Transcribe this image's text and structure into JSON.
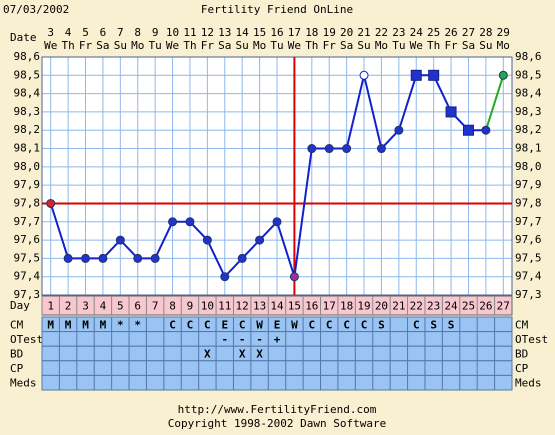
{
  "chart_data": {
    "type": "line",
    "date": "07/03/2002",
    "title": "Fertility Friend OnLine",
    "date_label": "Date",
    "day_label": "Day",
    "categories": [
      "3",
      "4",
      "5",
      "6",
      "7",
      "8",
      "9",
      "10",
      "11",
      "12",
      "13",
      "14",
      "15",
      "16",
      "17",
      "18",
      "19",
      "20",
      "21",
      "22",
      "23",
      "24",
      "25",
      "26",
      "27",
      "28",
      "29"
    ],
    "weekdays": [
      "We",
      "Th",
      "Fr",
      "Sa",
      "Su",
      "Mo",
      "Tu",
      "We",
      "Th",
      "Fr",
      "Sa",
      "Su",
      "Mo",
      "Tu",
      "We",
      "Th",
      "Fr",
      "Sa",
      "Su",
      "Mo",
      "Tu",
      "We",
      "Th",
      "Fr",
      "Sa",
      "Su",
      "Mo"
    ],
    "cycle_days": [
      "1",
      "2",
      "3",
      "4",
      "5",
      "6",
      "7",
      "8",
      "9",
      "10",
      "11",
      "12",
      "13",
      "14",
      "15",
      "16",
      "17",
      "18",
      "19",
      "20",
      "21",
      "22",
      "23",
      "24",
      "25",
      "26",
      "27"
    ],
    "values": [
      97.8,
      97.5,
      97.5,
      97.5,
      97.6,
      97.5,
      97.5,
      97.7,
      97.7,
      97.6,
      97.4,
      97.5,
      97.6,
      97.7,
      97.4,
      98.1,
      98.1,
      98.1,
      98.5,
      98.1,
      98.2,
      98.5,
      98.5,
      98.3,
      98.2,
      98.2,
      98.5
    ],
    "markers": [
      "circle",
      "circle",
      "circle",
      "circle",
      "circle",
      "circle",
      "circle",
      "circle",
      "circle",
      "circle",
      "circle",
      "circle",
      "circle",
      "circle",
      "circle",
      "circle",
      "circle",
      "circle",
      "open",
      "circle",
      "circle",
      "square",
      "square",
      "square",
      "square",
      "circle",
      "circle"
    ],
    "point_colors": [
      "#dd2222",
      "#2233cc",
      "#2233cc",
      "#2233cc",
      "#2233cc",
      "#2233cc",
      "#2233cc",
      "#2233cc",
      "#2233cc",
      "#2233cc",
      "#2233cc",
      "#2233cc",
      "#2233cc",
      "#2233cc",
      "#993399",
      "#2233cc",
      "#2233cc",
      "#2233cc",
      "#ffffff",
      "#2233cc",
      "#2233cc",
      "#2233cc",
      "#2233cc",
      "#2233cc",
      "#2233cc",
      "#2233cc",
      "#22aa44"
    ],
    "line_color": "#1122cc",
    "projection_color": "#22aa22",
    "coverline": 97.8,
    "coverline_color": "#dd0000",
    "ovulation_index": 14,
    "ylim": [
      97.3,
      98.6
    ],
    "yticks": [
      {
        "value": 98.6,
        "label": "98,6"
      },
      {
        "value": 98.5,
        "label": "98,5"
      },
      {
        "value": 98.4,
        "label": "98,4"
      },
      {
        "value": 98.3,
        "label": "98,3"
      },
      {
        "value": 98.2,
        "label": "98,2"
      },
      {
        "value": 98.1,
        "label": "98,1"
      },
      {
        "value": 98.0,
        "label": "98,0"
      },
      {
        "value": 97.9,
        "label": "97,9"
      },
      {
        "value": 97.8,
        "label": "97,8"
      },
      {
        "value": 97.7,
        "label": "97,7"
      },
      {
        "value": 97.6,
        "label": "97,6"
      },
      {
        "value": 97.5,
        "label": "97,5"
      },
      {
        "value": 97.4,
        "label": "97,4"
      },
      {
        "value": 97.3,
        "label": "97,3"
      }
    ],
    "grid": true,
    "rows": [
      {
        "name": "CM",
        "values": [
          "M",
          "M",
          "M",
          "M",
          "*",
          "*",
          null,
          "C",
          "C",
          "C",
          "E",
          "C",
          "W",
          "E",
          "W",
          "C",
          "C",
          "C",
          "C",
          "S",
          null,
          "C",
          "S",
          "S",
          null,
          null,
          null
        ]
      },
      {
        "name": "OTest",
        "values": [
          null,
          null,
          null,
          null,
          null,
          null,
          null,
          null,
          null,
          null,
          "-",
          "-",
          "-",
          "+",
          null,
          null,
          null,
          null,
          null,
          null,
          null,
          null,
          null,
          null,
          null,
          null,
          null
        ]
      },
      {
        "name": "BD",
        "values": [
          null,
          null,
          null,
          null,
          null,
          null,
          null,
          null,
          null,
          "X",
          null,
          "X",
          "X",
          null,
          null,
          null,
          null,
          null,
          null,
          null,
          null,
          null,
          null,
          null,
          null,
          null,
          null
        ]
      },
      {
        "name": "CP",
        "values": [
          null,
          null,
          null,
          null,
          null,
          null,
          null,
          null,
          null,
          null,
          null,
          null,
          null,
          null,
          null,
          null,
          null,
          null,
          null,
          null,
          null,
          null,
          null,
          null,
          null,
          null,
          null
        ]
      },
      {
        "name": "Meds",
        "values": [
          null,
          null,
          null,
          null,
          null,
          null,
          null,
          null,
          null,
          null,
          null,
          null,
          null,
          null,
          null,
          null,
          null,
          null,
          null,
          null,
          null,
          null,
          null,
          null,
          null,
          null,
          null
        ]
      }
    ],
    "url": "http://www.FertilityFriend.com",
    "copyright": "Copyright 1998-2002 Dawn Software"
  }
}
